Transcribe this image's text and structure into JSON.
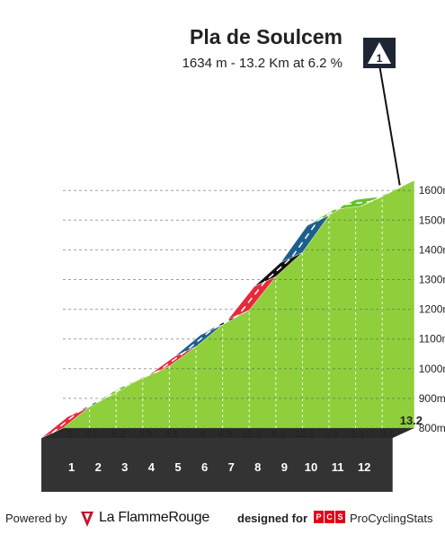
{
  "header": {
    "title": "Pla de Soulcem",
    "subtitle": "1634 m - 13.2 Km at 6.2 %"
  },
  "chart_data": {
    "type": "area",
    "title": "Pla de Soulcem",
    "subtitle": "1634 m - 13.2 Km at 6.2 %",
    "xlabel": "",
    "ylabel": "",
    "x_unit": "km",
    "y_unit": "m",
    "x_ticks": [
      "1",
      "2",
      "3",
      "4",
      "5",
      "6",
      "7",
      "8",
      "9",
      "10",
      "11",
      "12"
    ],
    "x_end_label": "13.2",
    "y_ticks": [
      "800m",
      "900m",
      "1000m",
      "1100m",
      "1200m",
      "1300m",
      "1400m",
      "1500m",
      "1600m"
    ],
    "ylim": [
      700,
      1650
    ],
    "xlim": [
      0,
      13.2
    ],
    "km_gradients": [
      7.2,
      4.7,
      5.2,
      3.8,
      6.5,
      7.4,
      4.9,
      11.3,
      8.1,
      12.5,
      5.3,
      1.1,
      3.1
    ],
    "gradient_labels": [
      "7.2",
      "4.7",
      "5.2",
      "3.8",
      "6.5",
      "7.4",
      "4.9",
      "11.3",
      "8.1",
      "12.5",
      "5.3",
      "1.1",
      "3.1"
    ],
    "profile": {
      "x_km": [
        0,
        1,
        2,
        3,
        4,
        5,
        6,
        7,
        8,
        9,
        10,
        11,
        12,
        13.2
      ],
      "elevation_m": [
        800,
        872,
        919,
        971,
        1009,
        1074,
        1148,
        1197,
        1310,
        1391,
        1516,
        1569,
        1580,
        1634
      ]
    },
    "segment_colors": [
      "#e8293a",
      "#1d5f8c",
      "#67c22b",
      "#e8293a",
      "#e8293a",
      "#1d5f8c",
      "#111111",
      "#e8293a",
      "#111111",
      "#1d5f8c",
      "#67c22b",
      "#67c22b",
      "#67c22b"
    ],
    "grid": true,
    "legend": "none",
    "summit_badge": "1",
    "colors": {
      "area_fill": "#8fcf3c",
      "road_shoulder": "#a89e92",
      "base_band": "#333333",
      "grid": "#555555"
    }
  },
  "footer": {
    "powered_by": "Powered by",
    "lfr_name": "La FlammeRouge",
    "designed_for": "designed for",
    "pcs_letters": [
      "P",
      "C",
      "S"
    ],
    "pcs_name": "ProCyclingStats"
  }
}
